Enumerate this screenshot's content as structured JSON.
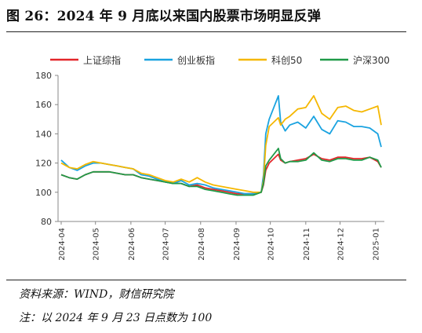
{
  "figure": {
    "title": "图 26：2024 年 9 月底以来国内股票市场明显反弹",
    "source": "资料来源：WIND，财信研究院",
    "note": "注：以 2024 年 9 月 23 日点数为 100"
  },
  "chart_data": {
    "type": "line",
    "title": "",
    "xlabel": "",
    "ylabel": "",
    "ylim": [
      80,
      180
    ],
    "yticks": [
      80,
      100,
      120,
      140,
      160,
      180
    ],
    "x_tick_labels": [
      "2024-04",
      "2024-05",
      "2024-06",
      "2024-07",
      "2024-08",
      "2024-09",
      "2024-10",
      "2024-11",
      "2024-12",
      "2025-01"
    ],
    "grid": false,
    "legend_position": "top",
    "x": [
      "2024-04-01",
      "2024-04-08",
      "2024-04-15",
      "2024-04-22",
      "2024-04-29",
      "2024-05-06",
      "2024-05-13",
      "2024-05-20",
      "2024-05-27",
      "2024-06-03",
      "2024-06-10",
      "2024-06-17",
      "2024-06-24",
      "2024-07-01",
      "2024-07-08",
      "2024-07-15",
      "2024-07-22",
      "2024-07-29",
      "2024-08-05",
      "2024-08-12",
      "2024-08-19",
      "2024-08-26",
      "2024-09-02",
      "2024-09-09",
      "2024-09-16",
      "2024-09-23",
      "2024-09-25",
      "2024-09-27",
      "2024-09-30",
      "2024-10-08",
      "2024-10-10",
      "2024-10-14",
      "2024-10-18",
      "2024-10-25",
      "2024-11-01",
      "2024-11-08",
      "2024-11-15",
      "2024-11-22",
      "2024-11-29",
      "2024-12-06",
      "2024-12-13",
      "2024-12-20",
      "2024-12-27",
      "2025-01-03",
      "2025-01-06"
    ],
    "series": [
      {
        "name": "上证综指",
        "color": "#e3262a",
        "values": [
          112,
          110,
          109,
          112,
          114,
          114,
          114,
          113,
          112,
          112,
          110,
          109,
          108,
          107,
          106,
          106,
          104,
          105,
          103,
          102,
          101,
          100,
          99,
          99,
          99,
          100,
          105,
          115,
          120,
          126,
          122,
          120,
          121,
          122,
          123,
          126,
          123,
          122,
          124,
          124,
          123,
          123,
          124,
          121,
          117
        ]
      },
      {
        "name": "创业板指",
        "color": "#1aa3e0",
        "values": [
          122,
          117,
          115,
          118,
          120,
          120,
          119,
          118,
          117,
          116,
          112,
          111,
          109,
          107,
          106,
          108,
          105,
          106,
          105,
          103,
          102,
          101,
          100,
          99,
          99,
          100,
          112,
          140,
          150,
          166,
          148,
          142,
          146,
          148,
          144,
          152,
          143,
          140,
          149,
          148,
          145,
          145,
          144,
          140,
          131
        ]
      },
      {
        "name": "科创50",
        "color": "#f5b700",
        "values": [
          120,
          117,
          116,
          119,
          121,
          120,
          119,
          118,
          117,
          116,
          113,
          112,
          110,
          108,
          107,
          109,
          107,
          110,
          107,
          105,
          104,
          103,
          102,
          101,
          100,
          100,
          108,
          132,
          145,
          151,
          146,
          150,
          152,
          157,
          158,
          166,
          154,
          150,
          158,
          159,
          156,
          155,
          157,
          159,
          146
        ]
      },
      {
        "name": "沪深300",
        "color": "#1f9a48",
        "values": [
          112,
          110,
          109,
          112,
          114,
          114,
          114,
          113,
          112,
          112,
          110,
          109,
          108,
          107,
          106,
          106,
          104,
          104,
          102,
          101,
          100,
          99,
          98,
          98,
          98,
          100,
          106,
          118,
          122,
          130,
          123,
          120,
          121,
          121,
          122,
          127,
          122,
          121,
          123,
          123,
          122,
          122,
          124,
          122,
          117
        ]
      }
    ]
  }
}
